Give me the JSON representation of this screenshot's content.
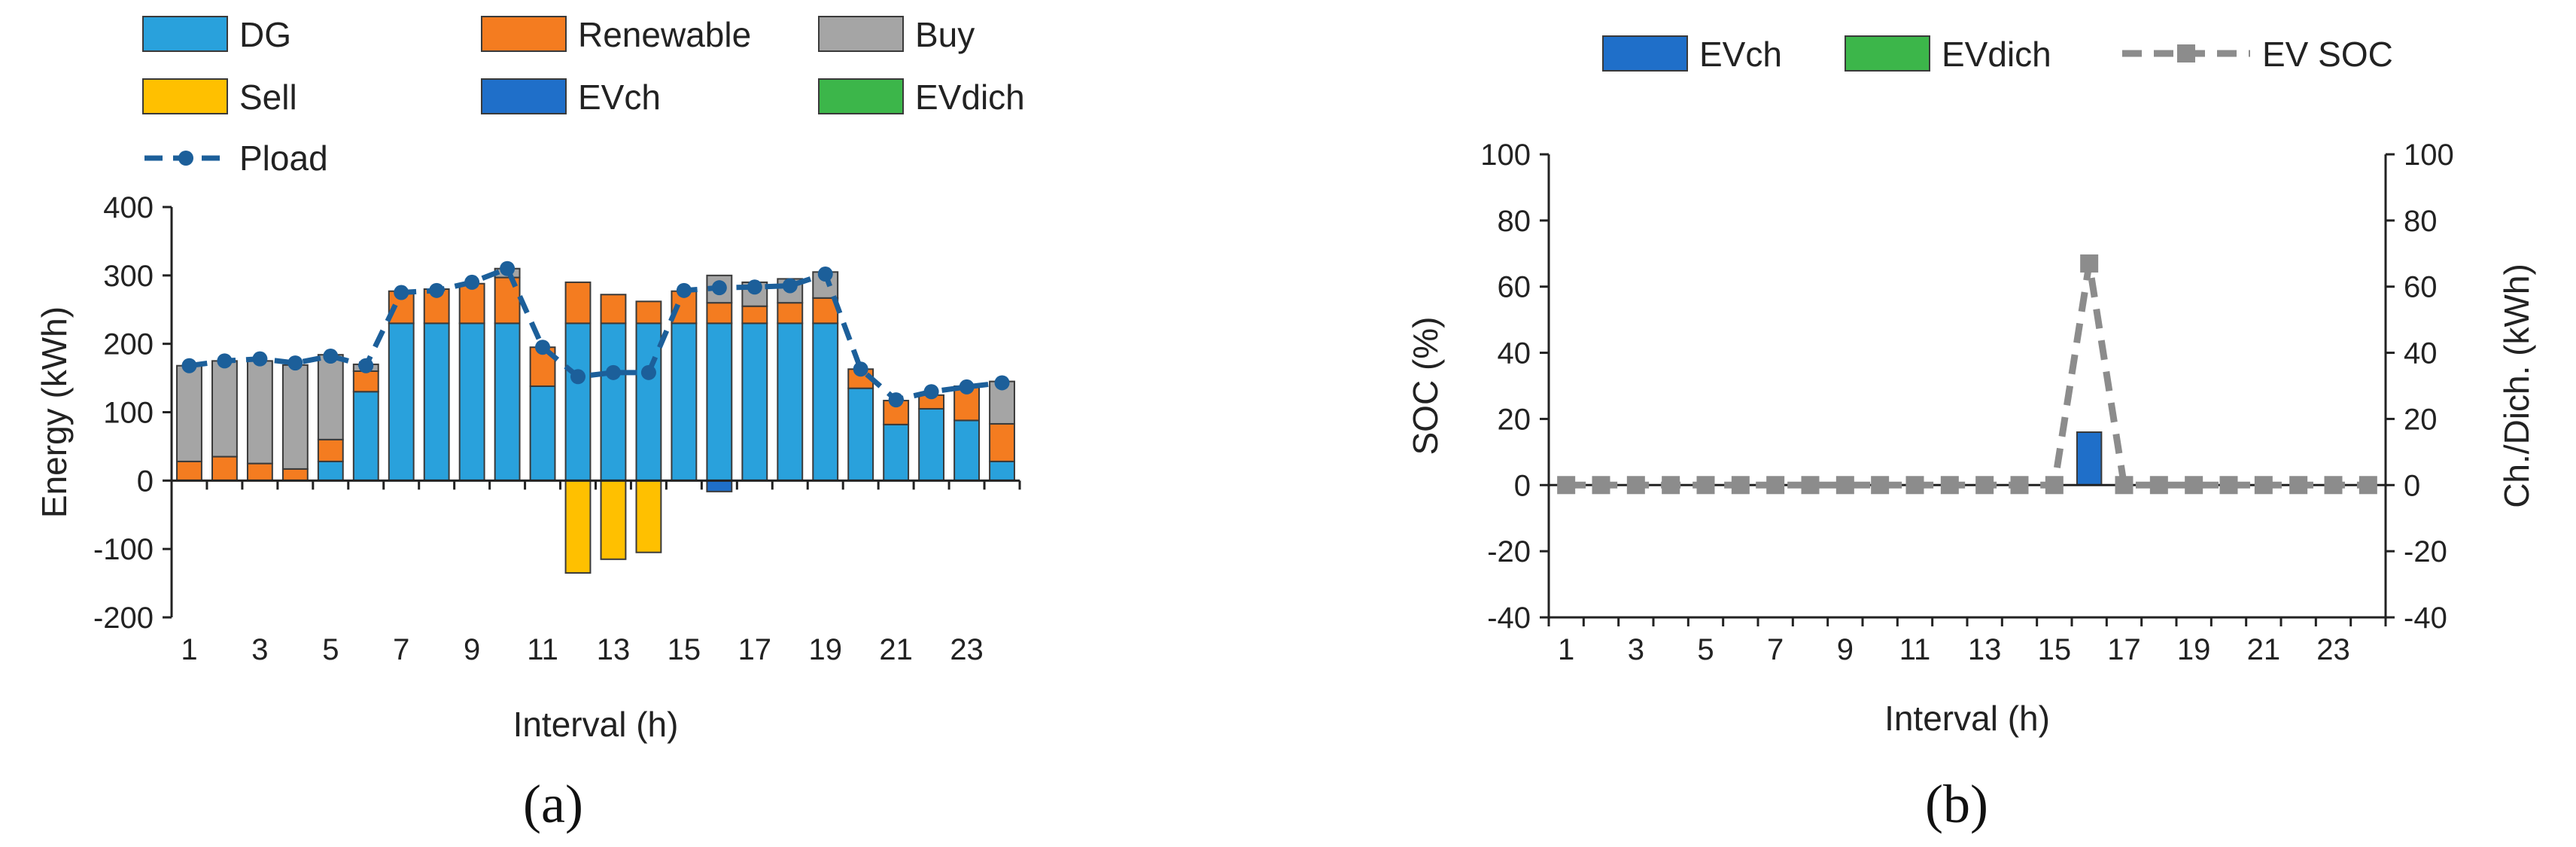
{
  "colors": {
    "DG": "#29a1dc",
    "Renewable": "#f47c20",
    "Buy": "#a5a5a5",
    "Sell": "#ffc000",
    "EVch": "#1f6fc9",
    "EVdich": "#3cb64a",
    "Pload": "#1c5f9a",
    "EVSOC": "#8c8c8c"
  },
  "chart_data": [
    {
      "panel": "(a)",
      "type": "bar",
      "stacked": true,
      "xlabel": "Interval (h)",
      "ylabel": "Energy (kWh)",
      "ylim": [
        -200,
        400
      ],
      "yticks": [
        -200,
        -100,
        0,
        100,
        200,
        300,
        400
      ],
      "x": [
        1,
        2,
        3,
        4,
        5,
        6,
        7,
        8,
        9,
        10,
        11,
        12,
        13,
        14,
        15,
        16,
        17,
        18,
        19,
        20,
        21,
        22,
        23,
        24
      ],
      "xtick_labels": [
        "1",
        "3",
        "5",
        "7",
        "9",
        "11",
        "13",
        "15",
        "17",
        "19",
        "21",
        "23"
      ],
      "legend_position": "top",
      "series": [
        {
          "name": "DG",
          "values": [
            0,
            0,
            0,
            0,
            28,
            130,
            230,
            230,
            230,
            230,
            138,
            230,
            230,
            230,
            230,
            230,
            230,
            230,
            230,
            135,
            82,
            105,
            88,
            28
          ]
        },
        {
          "name": "Renewable",
          "values": [
            28,
            35,
            25,
            17,
            32,
            30,
            47,
            50,
            58,
            67,
            57,
            60,
            42,
            32,
            47,
            30,
            25,
            30,
            37,
            28,
            35,
            20,
            50,
            55
          ]
        },
        {
          "name": "Buy",
          "values": [
            140,
            140,
            150,
            152,
            124,
            10,
            0,
            0,
            0,
            13,
            0,
            0,
            0,
            0,
            0,
            40,
            35,
            35,
            38,
            0,
            0,
            0,
            0,
            62
          ]
        },
        {
          "name": "Sell",
          "values": [
            0,
            0,
            0,
            0,
            0,
            0,
            0,
            0,
            0,
            0,
            0,
            -135,
            -115,
            -105,
            0,
            0,
            0,
            0,
            0,
            0,
            0,
            0,
            0,
            0
          ]
        },
        {
          "name": "EVch",
          "values": [
            0,
            0,
            0,
            0,
            0,
            0,
            0,
            0,
            0,
            0,
            0,
            0,
            0,
            0,
            0,
            -16,
            0,
            0,
            0,
            0,
            0,
            0,
            0,
            0
          ]
        },
        {
          "name": "EVdich",
          "values": [
            0,
            0,
            0,
            0,
            0,
            0,
            0,
            0,
            0,
            0,
            0,
            0,
            0,
            0,
            0,
            0,
            0,
            0,
            0,
            0,
            0,
            0,
            0,
            0
          ]
        },
        {
          "name": "Pload",
          "type": "line",
          "values": [
            168,
            175,
            178,
            172,
            182,
            168,
            275,
            278,
            290,
            310,
            195,
            152,
            158,
            158,
            278,
            282,
            283,
            285,
            302,
            163,
            118,
            130,
            137,
            143
          ]
        }
      ]
    },
    {
      "panel": "(b)",
      "type": "bar",
      "xlabel": "Interval (h)",
      "ylabel": "SOC (%)",
      "ylabel_right": "Ch./Dich. (kWh)",
      "ylim": [
        -40,
        100
      ],
      "ylim_right": [
        -40,
        100
      ],
      "yticks": [
        -40,
        -20,
        0,
        20,
        40,
        60,
        80,
        100
      ],
      "x": [
        1,
        2,
        3,
        4,
        5,
        6,
        7,
        8,
        9,
        10,
        11,
        12,
        13,
        14,
        15,
        16,
        17,
        18,
        19,
        20,
        21,
        22,
        23,
        24
      ],
      "xtick_labels": [
        "1",
        "3",
        "5",
        "7",
        "9",
        "11",
        "13",
        "15",
        "17",
        "19",
        "21",
        "23"
      ],
      "legend_position": "top",
      "series": [
        {
          "name": "EVch",
          "values": [
            0,
            0,
            0,
            0,
            0,
            0,
            0,
            0,
            0,
            0,
            0,
            0,
            0,
            0,
            0,
            16,
            0,
            0,
            0,
            0,
            0,
            0,
            0,
            0
          ]
        },
        {
          "name": "EVdich",
          "values": [
            0,
            0,
            0,
            0,
            0,
            0,
            0,
            0,
            0,
            0,
            0,
            0,
            0,
            0,
            0,
            0,
            0,
            0,
            0,
            0,
            0,
            0,
            0,
            0
          ]
        },
        {
          "name": "EV SOC",
          "type": "line",
          "values": [
            0,
            0,
            0,
            0,
            0,
            0,
            0,
            0,
            0,
            0,
            0,
            0,
            0,
            0,
            0,
            67,
            0,
            0,
            0,
            0,
            0,
            0,
            0,
            0
          ]
        }
      ]
    }
  ]
}
